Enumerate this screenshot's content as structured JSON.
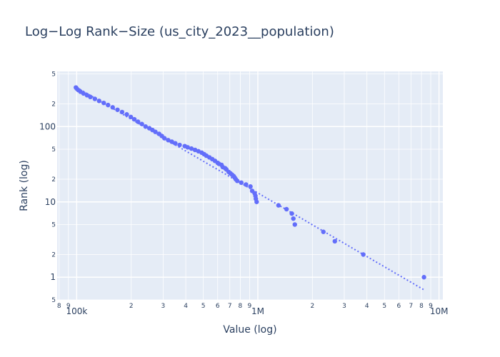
{
  "chart_data": {
    "type": "scatter",
    "title": "Log−Log Rank−Size (us_city_2023__population)",
    "xlabel": "Value (log)",
    "ylabel": "Rank (log)",
    "x_scale": "log",
    "y_scale": "log",
    "xlim": [
      78000,
      10500000
    ],
    "ylim": [
      0.5,
      540
    ],
    "x_ticks_major": [
      "100k",
      "1M",
      "10M"
    ],
    "y_ticks_major": [
      "1",
      "10",
      "100"
    ],
    "grid": true,
    "legend": "none",
    "colors": {
      "marker": "#636efa",
      "fit_line": "#636efa",
      "plot_bg": "#e5ecf6",
      "text": "#2a3f5f"
    },
    "series": [
      {
        "points": [
          [
            8260000,
            1
          ],
          [
            3820000,
            2
          ],
          [
            2660000,
            3
          ],
          [
            2300000,
            4
          ],
          [
            1600000,
            5
          ],
          [
            1570000,
            6
          ],
          [
            1540000,
            7
          ],
          [
            1440000,
            8
          ],
          [
            1300000,
            9
          ],
          [
            985000,
            10
          ],
          [
            975000,
            11
          ],
          [
            970000,
            12
          ],
          [
            960000,
            13
          ],
          [
            930000,
            14
          ],
          [
            910000,
            16
          ],
          [
            860000,
            17
          ],
          [
            810000,
            18
          ],
          [
            770000,
            19
          ],
          [
            755000,
            20
          ],
          [
            745000,
            21
          ],
          [
            735000,
            22
          ],
          [
            720000,
            23
          ],
          [
            705000,
            24
          ],
          [
            690000,
            25
          ],
          [
            670000,
            27
          ],
          [
            660000,
            28
          ],
          [
            640000,
            29
          ],
          [
            630000,
            31
          ],
          [
            610000,
            32
          ],
          [
            600000,
            33
          ],
          [
            580000,
            35
          ],
          [
            560000,
            37
          ],
          [
            540000,
            39
          ],
          [
            520000,
            41
          ],
          [
            505000,
            43
          ],
          [
            490000,
            45
          ],
          [
            470000,
            47
          ],
          [
            450000,
            49
          ],
          [
            430000,
            51
          ],
          [
            410000,
            53
          ],
          [
            395000,
            55
          ],
          [
            370000,
            57
          ],
          [
            350000,
            60
          ],
          [
            335000,
            63
          ],
          [
            320000,
            66
          ],
          [
            305000,
            70
          ],
          [
            295000,
            75
          ],
          [
            285000,
            80
          ],
          [
            272000,
            85
          ],
          [
            262000,
            90
          ],
          [
            252000,
            95
          ],
          [
            240000,
            100
          ],
          [
            229000,
            108
          ],
          [
            218000,
            116
          ],
          [
            208000,
            125
          ],
          [
            199000,
            134
          ],
          [
            189000,
            145
          ],
          [
            178000,
            156
          ],
          [
            168000,
            167
          ],
          [
            158000,
            180
          ],
          [
            149000,
            193
          ],
          [
            141000,
            206
          ],
          [
            133000,
            219
          ],
          [
            126000,
            233
          ],
          [
            119000,
            247
          ],
          [
            114000,
            261
          ],
          [
            109000,
            275
          ],
          [
            105000,
            290
          ],
          [
            102000,
            305
          ],
          [
            100000,
            320
          ],
          [
            99000,
            330
          ]
        ]
      }
    ],
    "fit_line": {
      "x": [
        100000,
        8260000
      ],
      "y": [
        331,
        0.68
      ]
    }
  }
}
